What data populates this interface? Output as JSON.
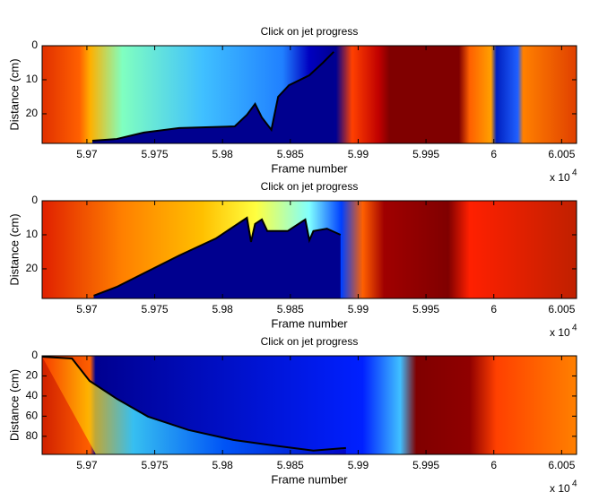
{
  "chart_data": [
    {
      "type": "line",
      "title": "Click on jet progress",
      "xlabel": "Frame number",
      "ylabel": "Distance (cm)",
      "x_multiplier": "x 10",
      "x_exponent": "4",
      "xlim": [
        5.9667,
        6.0061
      ],
      "ylim": [
        0,
        28.7
      ],
      "y_reversed": true,
      "xticks": [
        5.97,
        5.975,
        5.98,
        5.985,
        5.99,
        5.995,
        6,
        6.005
      ],
      "yticks": [
        0,
        10,
        20
      ],
      "series": [
        {
          "color": "#000000",
          "x": [
            5.9704,
            5.9722,
            5.9742,
            5.9768,
            5.9809,
            5.9818,
            5.9824,
            5.9829,
            5.9836,
            5.9841,
            5.9849,
            5.9864,
            5.9874,
            5.9882
          ],
          "values": [
            27.9,
            27.4,
            25.5,
            24.2,
            23.7,
            20.3,
            17.1,
            21.1,
            24.7,
            15.0,
            11.6,
            8.7,
            5.0,
            1.8
          ]
        }
      ]
    },
    {
      "type": "line",
      "title": "Click on jet progress",
      "xlabel": "Frame number",
      "ylabel": "Distance (cm)",
      "x_multiplier": "x 10",
      "x_exponent": "4",
      "xlim": [
        5.9667,
        6.0061
      ],
      "ylim": [
        0,
        28.7
      ],
      "y_reversed": true,
      "xticks": [
        5.97,
        5.975,
        5.98,
        5.985,
        5.99,
        5.995,
        6,
        6.005
      ],
      "yticks": [
        0,
        10,
        20
      ],
      "series": [
        {
          "color": "#000000",
          "x": [
            5.9705,
            5.9722,
            5.9742,
            5.9768,
            5.9795,
            5.9818,
            5.9821,
            5.9824,
            5.9829,
            5.9833,
            5.9848,
            5.9861,
            5.9864,
            5.9867,
            5.9877,
            5.9887
          ],
          "values": [
            27.9,
            25.3,
            21.3,
            16.1,
            11.1,
            5.0,
            12.1,
            6.8,
            5.5,
            8.9,
            8.9,
            5.5,
            11.6,
            8.9,
            8.2,
            10.0
          ]
        }
      ]
    },
    {
      "type": "line",
      "title": "Click on jet progress",
      "xlabel": "Frame number",
      "ylabel": "Distance (cm)",
      "x_multiplier": "x 10",
      "x_exponent": "4",
      "xlim": [
        5.9667,
        6.0061
      ],
      "ylim": [
        0,
        98
      ],
      "y_reversed": true,
      "xticks": [
        5.97,
        5.975,
        5.98,
        5.985,
        5.99,
        5.995,
        6,
        6.005
      ],
      "yticks": [
        0,
        20,
        40,
        60,
        80
      ],
      "series": [
        {
          "color": "#000000",
          "x": [
            5.9667,
            5.9689,
            5.9702,
            5.9722,
            5.9745,
            5.9775,
            5.9808,
            5.9841,
            5.9867,
            5.9891
          ],
          "values": [
            0.9,
            2.7,
            24.9,
            42.7,
            60.4,
            73.8,
            83.6,
            89.8,
            94.2,
            91.6
          ]
        }
      ]
    }
  ]
}
